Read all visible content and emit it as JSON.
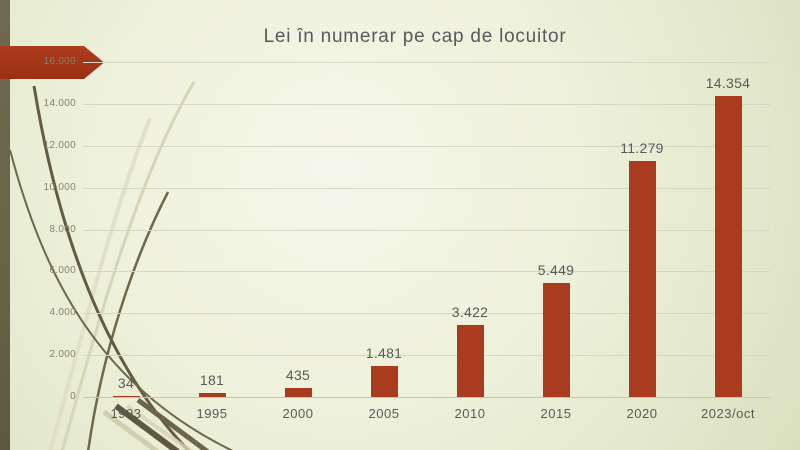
{
  "slide": {
    "title": "Lei în numerar pe cap de locuitor"
  },
  "theme": {
    "accent_bar": "#a93b1e",
    "arrow_fill_top": "#ad3d1f",
    "arrow_fill_bottom": "#9a2f12",
    "text_gray": "#595959",
    "tick_gray": "#868271",
    "gridline": "#d4d7c3",
    "left_strip": "#6b6448",
    "decor_dark": "#665f44",
    "decor_light": "#d8d4b6",
    "background_center": "#f6f7eb",
    "background_edge": "#d9dfbe"
  },
  "chart_data": {
    "type": "bar",
    "title": "Lei în numerar pe cap de locuitor",
    "categories": [
      "1993",
      "1995",
      "2000",
      "2005",
      "2010",
      "2015",
      "2020",
      "2023/oct"
    ],
    "values": [
      34,
      181,
      435,
      1481,
      3422,
      5449,
      11279,
      14354
    ],
    "data_labels": [
      "34",
      "181",
      "435",
      "1.481",
      "3.422",
      "5.449",
      "11.279",
      "14.354"
    ],
    "y_ticks": [
      "0",
      "2.000",
      "4.000",
      "6.000",
      "8.000",
      "10.000",
      "12.000",
      "14.000",
      "16.000"
    ],
    "y_tick_values": [
      0,
      2000,
      4000,
      6000,
      8000,
      10000,
      12000,
      14000,
      16000
    ],
    "xlabel": "",
    "ylabel": "",
    "ylim": [
      0,
      16000
    ],
    "grid": true,
    "legend": false,
    "bar_color": "#a93b1e"
  }
}
